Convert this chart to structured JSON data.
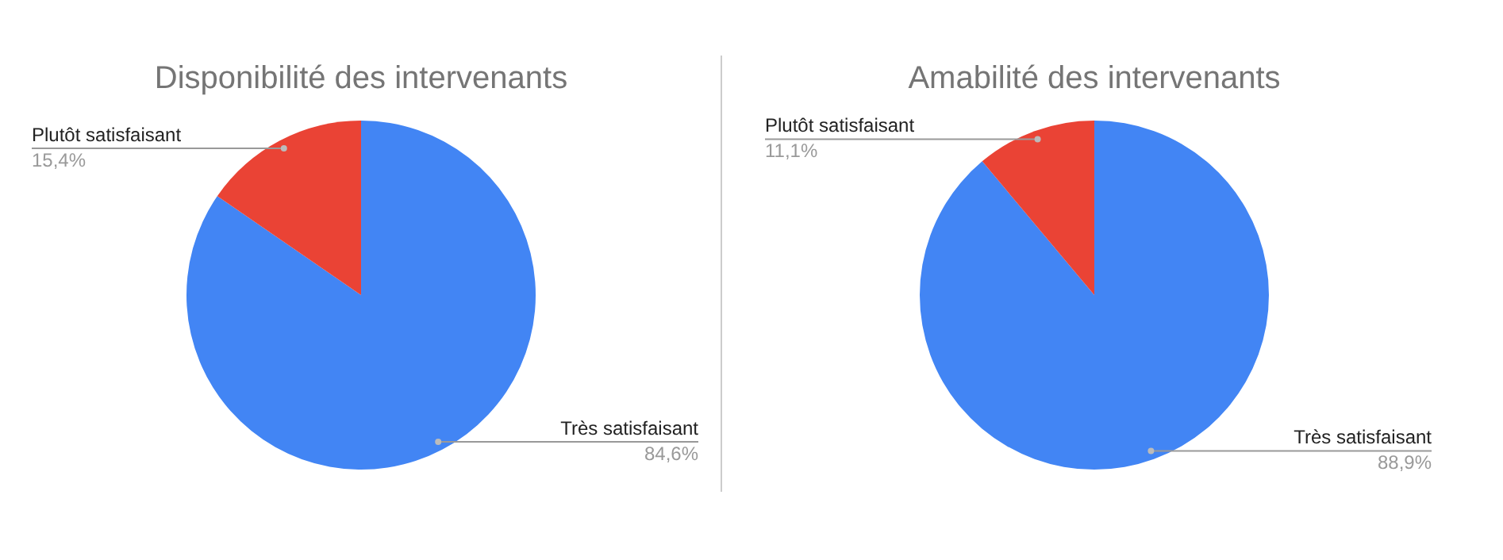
{
  "chart_data": [
    {
      "type": "pie",
      "title": "Disponibilité des intervenants",
      "categories": [
        "Très satisfaisant",
        "Plutôt satisfaisant"
      ],
      "values": [
        84.6,
        15.4
      ],
      "colors": [
        "#4285f4",
        "#ea4335"
      ],
      "value_labels": [
        "84,6%",
        "15,4%"
      ]
    },
    {
      "type": "pie",
      "title": "Amabilité des intervenants",
      "categories": [
        "Très satisfaisant",
        "Plutôt satisfaisant"
      ],
      "values": [
        88.9,
        11.1
      ],
      "colors": [
        "#4285f4",
        "#ea4335"
      ],
      "value_labels": [
        "88,9%",
        "11,1%"
      ]
    }
  ]
}
